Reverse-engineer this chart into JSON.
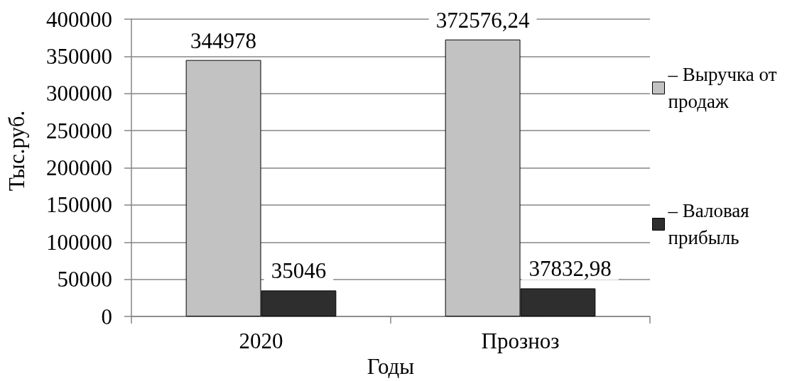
{
  "chart_data": {
    "type": "bar",
    "xlabel": "Годы",
    "ylabel": "Тыс.руб.",
    "categories": [
      "2020",
      "Прозноз"
    ],
    "series": [
      {
        "name": "– Выручка от продаж",
        "color": "#c2c2c2",
        "values": [
          344978,
          372576.24
        ],
        "value_labels": [
          "344978",
          "372576,24"
        ]
      },
      {
        "name": "– Валовая прибыль",
        "color": "#2e2e2e",
        "values": [
          35046,
          37832.98
        ],
        "value_labels": [
          "35046",
          "37832,98"
        ]
      }
    ],
    "ylim": [
      0,
      400000
    ],
    "yticks": [
      0,
      50000,
      100000,
      150000,
      200000,
      250000,
      300000,
      350000,
      400000
    ],
    "grid": "y",
    "legend": "right"
  }
}
